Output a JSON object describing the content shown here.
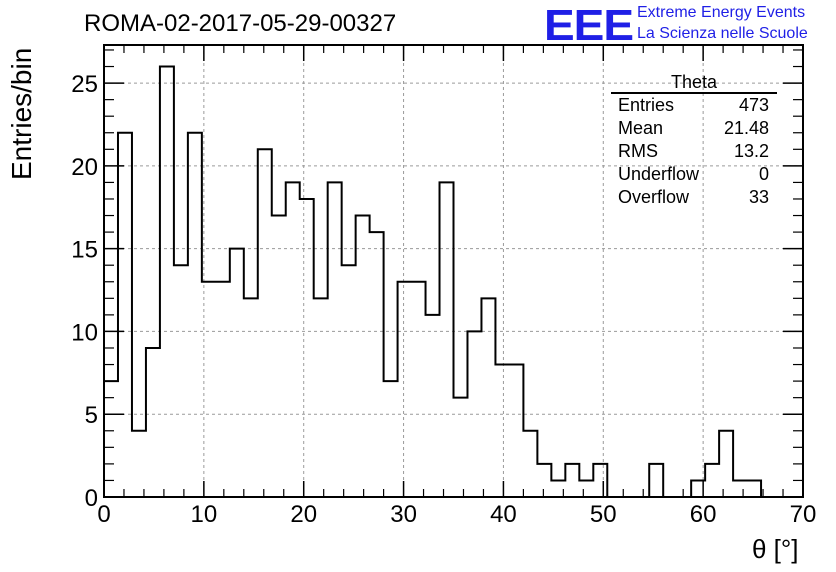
{
  "header": {
    "run_title": "ROMA-02-2017-05-29-00327",
    "logo_text": "EEE",
    "brand_line1": "Extreme Energy Events",
    "brand_line2": "La Scienza nelle Scuole",
    "brand_color": "#1f1fe6"
  },
  "stats_box": {
    "title": "Theta",
    "rows": [
      {
        "label": "Entries",
        "value": "473"
      },
      {
        "label": "Mean",
        "value": "21.48"
      },
      {
        "label": "RMS",
        "value": "13.2"
      },
      {
        "label": "Underflow",
        "value": "0"
      },
      {
        "label": "Overflow",
        "value": "33"
      }
    ]
  },
  "chart_data": {
    "type": "bar",
    "style": "step-histogram",
    "xlabel": "θ [°]",
    "ylabel": "Entries/bin",
    "xlim": [
      0,
      70
    ],
    "ylim": [
      0,
      27.3
    ],
    "bin_width": 1.4,
    "bin_edges_start": 0,
    "values": [
      7,
      22,
      4,
      9,
      26,
      14,
      22,
      13,
      13,
      15,
      12,
      21,
      17,
      19,
      18,
      12,
      19,
      14,
      17,
      16,
      7,
      13,
      13,
      11,
      19,
      6,
      10,
      12,
      8,
      8,
      4,
      2,
      1,
      2,
      1,
      2,
      0,
      0,
      0,
      2,
      0,
      0,
      1,
      2,
      4,
      1,
      1,
      0,
      0,
      0
    ],
    "x_ticks": [
      "0",
      "10",
      "20",
      "30",
      "40",
      "50",
      "60",
      "70"
    ],
    "y_ticks": [
      "0",
      "5",
      "10",
      "15",
      "20",
      "25"
    ],
    "grid": true,
    "line_color": "#000000",
    "grid_color": "#9a9a9a"
  }
}
